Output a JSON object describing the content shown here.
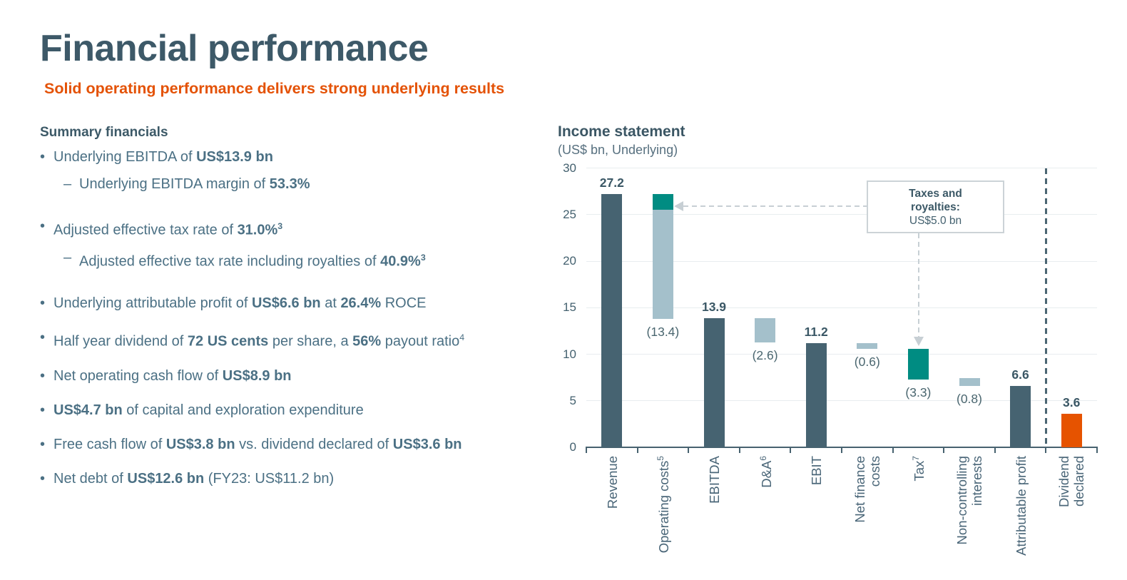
{
  "page": {
    "title": "Financial performance",
    "subtitle": "Solid operating performance delivers strong underlying results"
  },
  "summary": {
    "heading": "Summary financials",
    "bullets": [
      {
        "level": 1,
        "segments": [
          {
            "t": "Underlying EBITDA of "
          },
          {
            "t": "US$13.9 bn",
            "b": true
          }
        ]
      },
      {
        "level": 2,
        "segments": [
          {
            "t": "Underlying EBITDA margin of "
          },
          {
            "t": "53.3%",
            "b": true
          }
        ]
      },
      {
        "level": 1,
        "segments": [
          {
            "t": "Adjusted effective tax rate of "
          },
          {
            "t": "31.0%",
            "b": true
          },
          {
            "t": "3",
            "b": true,
            "sup": true
          }
        ]
      },
      {
        "level": 2,
        "segments": [
          {
            "t": "Adjusted effective tax rate including royalties of "
          },
          {
            "t": "40.9%",
            "b": true
          },
          {
            "t": "3",
            "b": true,
            "sup": true
          }
        ]
      },
      {
        "level": 1,
        "segments": [
          {
            "t": "Underlying attributable profit of "
          },
          {
            "t": "US$6.6 bn",
            "b": true
          },
          {
            "t": " at "
          },
          {
            "t": "26.4%",
            "b": true
          },
          {
            "t": " ROCE"
          }
        ]
      },
      {
        "level": 1,
        "segments": [
          {
            "t": "Half year dividend of "
          },
          {
            "t": "72 US cents",
            "b": true
          },
          {
            "t": " per share, a "
          },
          {
            "t": "56%",
            "b": true
          },
          {
            "t": " payout ratio"
          },
          {
            "t": "4",
            "sup": true
          }
        ]
      },
      {
        "level": 1,
        "segments": [
          {
            "t": "Net operating cash flow of "
          },
          {
            "t": "US$8.9 bn",
            "b": true
          }
        ]
      },
      {
        "level": 1,
        "segments": [
          {
            "t": "US$4.7 bn",
            "b": true
          },
          {
            "t": " of capital and exploration expenditure"
          }
        ]
      },
      {
        "level": 1,
        "segments": [
          {
            "t": "Free cash flow of "
          },
          {
            "t": "US$3.8 bn",
            "b": true
          },
          {
            "t": " vs. dividend declared of "
          },
          {
            "t": "US$3.6 bn",
            "b": true
          }
        ]
      },
      {
        "level": 1,
        "segments": [
          {
            "t": "Net debt of "
          },
          {
            "t": "US$12.6 bn",
            "b": true
          },
          {
            "t": " (FY23: US$11.2 bn)"
          }
        ]
      }
    ]
  },
  "chart_data": {
    "type": "bar",
    "variant": "waterfall",
    "title": "Income statement",
    "subtitle": "(US$ bn, Underlying)",
    "ylim": [
      0,
      30
    ],
    "yticks": [
      0,
      5,
      10,
      15,
      20,
      25,
      30
    ],
    "grid": true,
    "colors": {
      "dark": "#466371",
      "light": "#a4c0cb",
      "teal": "#008c82",
      "orange": "#e65300",
      "axis": "#47626f",
      "grid": "#e8edef",
      "arrow": "#c7cfd4"
    },
    "bars": [
      {
        "name": "Revenue",
        "label_lines": [
          "Revenue"
        ],
        "value_label": "27.2",
        "label_pos": "above",
        "segments": [
          {
            "from": 0,
            "to": 27.2,
            "color": "dark"
          }
        ]
      },
      {
        "name": "Operating costs",
        "label_lines": [
          "Operating costs"
        ],
        "footnote": "5",
        "value_label": "(13.4)",
        "label_pos": "below",
        "segments": [
          {
            "from": 13.8,
            "to": 25.5,
            "color": "light"
          },
          {
            "from": 25.5,
            "to": 27.2,
            "color": "teal"
          }
        ]
      },
      {
        "name": "EBITDA",
        "label_lines": [
          "EBITDA"
        ],
        "value_label": "13.9",
        "label_pos": "above",
        "segments": [
          {
            "from": 0,
            "to": 13.9,
            "color": "dark"
          }
        ]
      },
      {
        "name": "D&A",
        "label_lines": [
          "D&A"
        ],
        "footnote": "6",
        "value_label": "(2.6)",
        "label_pos": "below",
        "segments": [
          {
            "from": 11.3,
            "to": 13.9,
            "color": "light"
          }
        ]
      },
      {
        "name": "EBIT",
        "label_lines": [
          "EBIT"
        ],
        "value_label": "11.2",
        "label_pos": "above",
        "segments": [
          {
            "from": 0,
            "to": 11.2,
            "color": "dark"
          }
        ]
      },
      {
        "name": "Net finance costs",
        "label_lines": [
          "Net finance",
          "costs"
        ],
        "value_label": "(0.6)",
        "label_pos": "below",
        "segments": [
          {
            "from": 10.6,
            "to": 11.2,
            "color": "light"
          }
        ]
      },
      {
        "name": "Tax",
        "label_lines": [
          "Tax"
        ],
        "footnote": "7",
        "value_label": "(3.3)",
        "label_pos": "below",
        "segments": [
          {
            "from": 7.3,
            "to": 10.6,
            "color": "teal"
          }
        ]
      },
      {
        "name": "Non-controlling interests",
        "label_lines": [
          "Non-controlling",
          "interests"
        ],
        "value_label": "(0.8)",
        "label_pos": "below",
        "segments": [
          {
            "from": 6.6,
            "to": 7.4,
            "color": "light"
          }
        ]
      },
      {
        "name": "Attributable profit",
        "label_lines": [
          "Attributable profit"
        ],
        "value_label": "6.6",
        "label_pos": "above",
        "segments": [
          {
            "from": 0,
            "to": 6.6,
            "color": "dark"
          }
        ]
      },
      {
        "name": "Dividend declared",
        "label_lines": [
          "Dividend",
          "declared"
        ],
        "value_label": "3.6",
        "label_pos": "above",
        "segments": [
          {
            "from": 0,
            "to": 3.6,
            "color": "orange"
          }
        ]
      }
    ],
    "separator_before": "Dividend declared",
    "callout": {
      "bold_lines": [
        "Taxes and",
        "royalties:"
      ],
      "value_line": "US$5.0 bn"
    }
  }
}
